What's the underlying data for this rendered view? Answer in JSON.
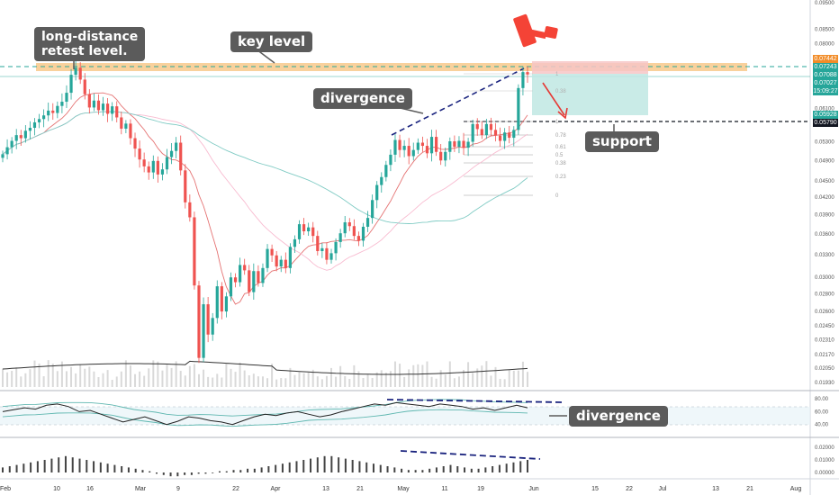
{
  "chart_data": [
    {
      "type": "candlestick",
      "x_ticks": [
        "Feb",
        "10",
        "16",
        "Mar",
        "9",
        "22",
        "Apr",
        "13",
        "21",
        "May",
        "11",
        "19",
        "Jun",
        "15",
        "22",
        "Jul",
        "13",
        "21",
        "Aug"
      ],
      "price_axis": [
        "0.09500",
        "0.08500",
        "0.08000",
        "0.06100",
        "0.05300",
        "0.04900",
        "0.04500",
        "0.04200",
        "0.03900",
        "0.03600",
        "0.03300",
        "0.03000",
        "0.02800",
        "0.02600",
        "0.02450",
        "0.02310",
        "0.02170",
        "0.02050",
        "0.01930"
      ],
      "price_tags": [
        {
          "value": "0.07442",
          "color": "#f28c28"
        },
        {
          "value": "0.07243",
          "color": "#26a69a"
        },
        {
          "value": "0.07088",
          "color": "#26a69a"
        },
        {
          "value": "0.07027",
          "color": "#26a69a"
        },
        {
          "value": "15:09:27",
          "color": "#26a69a"
        },
        {
          "value": "0.05928",
          "color": "#26a69a"
        },
        {
          "value": "0.05790",
          "color": "#131722"
        }
      ],
      "fib_levels": [
        "1",
        "0.78",
        "0.61",
        "0.5",
        "0.38",
        "0.23",
        "0"
      ],
      "fib_extension": [
        "1",
        "0.38"
      ],
      "series_close": [
        0.0503,
        0.0518,
        0.0532,
        0.0545,
        0.0538,
        0.0555,
        0.0562,
        0.0575,
        0.0583,
        0.0592,
        0.0604,
        0.0598,
        0.0616,
        0.0627,
        0.0651,
        0.0702,
        0.0723,
        0.0688,
        0.0647,
        0.0612,
        0.063,
        0.0605,
        0.0622,
        0.0596,
        0.0615,
        0.0587,
        0.056,
        0.0572,
        0.0538,
        0.0515,
        0.0492,
        0.0478,
        0.0466,
        0.0489,
        0.0462,
        0.0472,
        0.0497,
        0.051,
        0.0528,
        0.047,
        0.0411,
        0.0386,
        0.029,
        0.0214,
        0.0268,
        0.0236,
        0.0253,
        0.0289,
        0.026,
        0.0277,
        0.03,
        0.0294,
        0.0316,
        0.0309,
        0.0282,
        0.0308,
        0.0293,
        0.0312,
        0.0338,
        0.0329,
        0.0314,
        0.0323,
        0.0312,
        0.0341,
        0.0352,
        0.0375,
        0.0364,
        0.037,
        0.0357,
        0.0335,
        0.0339,
        0.0323,
        0.0332,
        0.0348,
        0.0361,
        0.0378,
        0.0372,
        0.0357,
        0.035,
        0.0371,
        0.0385,
        0.0415,
        0.0442,
        0.0457,
        0.0481,
        0.0502,
        0.0534,
        0.0512,
        0.0521,
        0.0499,
        0.0512,
        0.0528,
        0.0521,
        0.0505,
        0.0541,
        0.0508,
        0.049,
        0.0508,
        0.0531,
        0.0519,
        0.0532,
        0.0517,
        0.053,
        0.0571,
        0.0559,
        0.0545,
        0.0571,
        0.0557,
        0.0544,
        0.0532,
        0.0551,
        0.0539,
        0.0557,
        0.0664,
        0.071,
        0.0703
      ]
    },
    {
      "type": "line",
      "x_ticks": [],
      "y_ticks": [
        "80.00",
        "60.00",
        "40.00"
      ],
      "series": [
        {
          "values": [
            60,
            63,
            66,
            64,
            70,
            72,
            68,
            60,
            62,
            56,
            50,
            44,
            48,
            52,
            46,
            40,
            45,
            52,
            50,
            46,
            44,
            40,
            46,
            52,
            56,
            54,
            58,
            60,
            56,
            52,
            55,
            60,
            64,
            68,
            72,
            70,
            74,
            72,
            70,
            68,
            72,
            70,
            68,
            64,
            66,
            62,
            66,
            70,
            66
          ]
        }
      ]
    },
    {
      "type": "bar",
      "x_ticks": [],
      "y_ticks": [
        "0.02000",
        "0.01000",
        "0.00000"
      ],
      "series": [
        {
          "values": [
            0.004,
            0.005,
            0.006,
            0.007,
            0.008,
            0.009,
            0.01,
            0.011,
            0.012,
            0.013,
            0.012,
            0.011,
            0.01,
            0.009,
            0.008,
            0.007,
            0.006,
            0.005,
            0.004,
            0.003,
            0.002,
            0.001,
            -0.001,
            -0.002,
            -0.003,
            -0.003,
            -0.002,
            -0.002,
            -0.001,
            -0.001,
            0.0,
            0.001,
            0.001,
            0.002,
            0.002,
            0.003,
            0.003,
            0.004,
            0.005,
            0.006,
            0.007,
            0.008,
            0.009,
            0.01,
            0.011,
            0.012,
            0.013,
            0.013,
            0.012,
            0.011,
            0.01,
            0.009,
            0.008,
            0.007,
            0.006,
            0.005,
            0.004,
            0.003,
            0.002,
            0.002,
            0.002,
            0.003,
            0.004,
            0.005,
            0.006,
            0.005,
            0.004,
            0.003,
            0.003,
            0.004,
            0.005,
            0.006,
            0.007,
            0.008,
            0.009,
            0.01
          ]
        }
      ]
    }
  ],
  "annotations": {
    "retest": "long-distance\nretest level.",
    "key_level": "key level",
    "divergence_main": "divergence",
    "support": "support",
    "divergence_rsi": "divergence"
  },
  "colors": {
    "up": "#26a69a",
    "down": "#ef5350",
    "key_zone": "#f7c27b",
    "take_profit": "#bfe7e3",
    "stop": "#f7c6c6",
    "hammer": "#f44336",
    "callout": "#5b5b5b",
    "trendline": "#1a237e"
  },
  "icons": {
    "hammer": "gavel-icon"
  }
}
